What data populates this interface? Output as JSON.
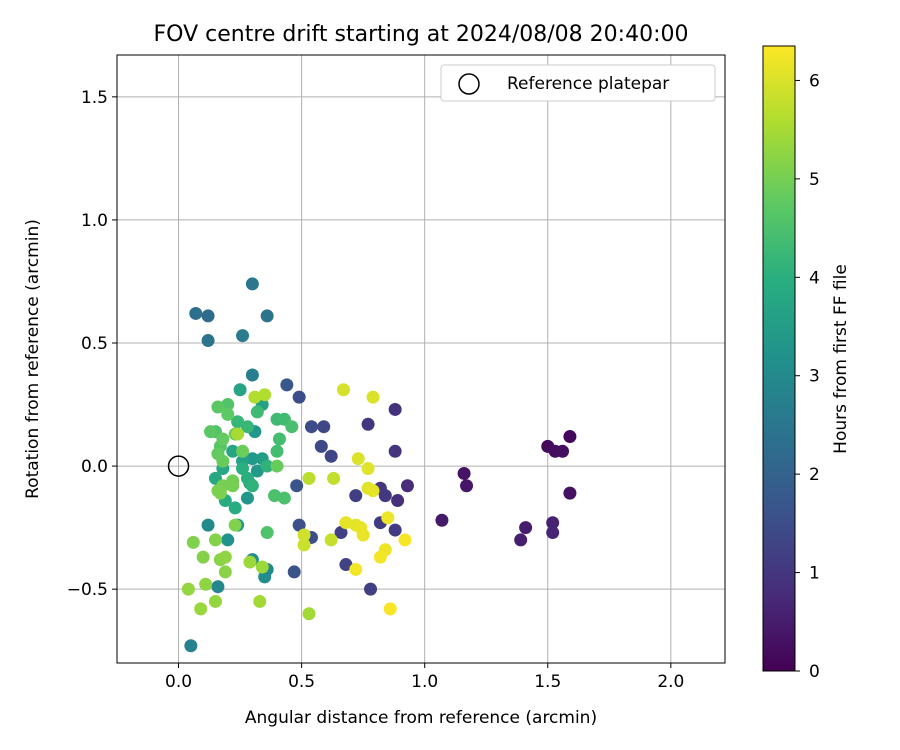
{
  "chart_data": {
    "type": "scatter",
    "title": "FOV centre drift starting at 2024/08/08 20:40:00",
    "xlabel": "Angular distance from reference (arcmin)",
    "ylabel": "Rotation from reference (arcmin)",
    "xlim": [
      -0.25,
      2.22
    ],
    "ylim": [
      -0.8,
      1.67
    ],
    "x_ticks": [
      {
        "value": 0.0,
        "label": "0.0"
      },
      {
        "value": 0.5,
        "label": "0.5"
      },
      {
        "value": 1.0,
        "label": "1.0"
      },
      {
        "value": 1.5,
        "label": "1.5"
      },
      {
        "value": 2.0,
        "label": "2.0"
      }
    ],
    "y_ticks": [
      {
        "value": -0.5,
        "label": "−0.5"
      },
      {
        "value": 0.0,
        "label": "0.0"
      },
      {
        "value": 0.5,
        "label": "0.5"
      },
      {
        "value": 1.0,
        "label": "1.0"
      },
      {
        "value": 1.5,
        "label": "1.5"
      }
    ],
    "grid": true,
    "legend": {
      "placement": "top-right",
      "entries": [
        {
          "label": "Reference platepar",
          "marker": "open-circle"
        }
      ]
    },
    "reference_point": {
      "x": 0.0,
      "y": 0.0
    },
    "colorbar": {
      "label": "Hours from first FF file",
      "colormap": "viridis",
      "range": [
        0,
        6.35
      ],
      "ticks": [
        {
          "value": 0,
          "label": "0"
        },
        {
          "value": 1,
          "label": "1"
        },
        {
          "value": 2,
          "label": "2"
        },
        {
          "value": 3,
          "label": "3"
        },
        {
          "value": 4,
          "label": "4"
        },
        {
          "value": 5,
          "label": "5"
        },
        {
          "value": 6,
          "label": "6"
        }
      ]
    },
    "points": [
      {
        "x": 1.59,
        "y": 0.12,
        "c": 0.1
      },
      {
        "x": 1.5,
        "y": 0.08,
        "c": 0.15
      },
      {
        "x": 1.53,
        "y": 0.06,
        "c": 0.2
      },
      {
        "x": 1.56,
        "y": 0.06,
        "c": 0.25
      },
      {
        "x": 1.59,
        "y": -0.11,
        "c": 0.3
      },
      {
        "x": 1.16,
        "y": -0.03,
        "c": 0.35
      },
      {
        "x": 1.17,
        "y": -0.08,
        "c": 0.4
      },
      {
        "x": 1.07,
        "y": -0.22,
        "c": 0.45
      },
      {
        "x": 1.41,
        "y": -0.25,
        "c": 0.5
      },
      {
        "x": 1.39,
        "y": -0.3,
        "c": 0.55
      },
      {
        "x": 1.52,
        "y": -0.23,
        "c": 0.6
      },
      {
        "x": 1.52,
        "y": -0.27,
        "c": 0.65
      },
      {
        "x": 0.93,
        "y": -0.08,
        "c": 0.8
      },
      {
        "x": 0.89,
        "y": -0.14,
        "c": 0.85
      },
      {
        "x": 0.88,
        "y": 0.23,
        "c": 0.9
      },
      {
        "x": 0.88,
        "y": 0.06,
        "c": 0.95
      },
      {
        "x": 0.77,
        "y": 0.17,
        "c": 1.0
      },
      {
        "x": 0.82,
        "y": -0.09,
        "c": 1.0
      },
      {
        "x": 0.84,
        "y": -0.12,
        "c": 1.05
      },
      {
        "x": 0.82,
        "y": -0.23,
        "c": 1.1
      },
      {
        "x": 0.88,
        "y": -0.26,
        "c": 1.1
      },
      {
        "x": 0.72,
        "y": -0.12,
        "c": 1.15
      },
      {
        "x": 0.78,
        "y": -0.5,
        "c": 1.2
      },
      {
        "x": 0.66,
        "y": -0.27,
        "c": 1.2
      },
      {
        "x": 0.68,
        "y": -0.4,
        "c": 1.25
      },
      {
        "x": 0.62,
        "y": 0.04,
        "c": 1.3
      },
      {
        "x": 0.59,
        "y": 0.16,
        "c": 1.35
      },
      {
        "x": 0.58,
        "y": 0.08,
        "c": 1.4
      },
      {
        "x": 0.54,
        "y": 0.16,
        "c": 1.45
      },
      {
        "x": 0.49,
        "y": 0.28,
        "c": 1.5
      },
      {
        "x": 0.54,
        "y": -0.29,
        "c": 1.5
      },
      {
        "x": 0.49,
        "y": -0.24,
        "c": 1.55
      },
      {
        "x": 0.47,
        "y": -0.43,
        "c": 1.6
      },
      {
        "x": 0.48,
        "y": -0.08,
        "c": 1.65
      },
      {
        "x": 0.44,
        "y": 0.33,
        "c": 1.7
      },
      {
        "x": 0.12,
        "y": 0.61,
        "c": 2.2
      },
      {
        "x": 0.07,
        "y": 0.62,
        "c": 2.3
      },
      {
        "x": 0.36,
        "y": 0.61,
        "c": 2.4
      },
      {
        "x": 0.12,
        "y": 0.51,
        "c": 2.4
      },
      {
        "x": 0.3,
        "y": 0.74,
        "c": 2.5
      },
      {
        "x": 0.26,
        "y": 0.53,
        "c": 2.6
      },
      {
        "x": 0.3,
        "y": 0.37,
        "c": 2.7
      },
      {
        "x": 0.05,
        "y": -0.73,
        "c": 2.8
      },
      {
        "x": 0.16,
        "y": -0.49,
        "c": 2.9
      },
      {
        "x": 0.12,
        "y": -0.24,
        "c": 3.0
      },
      {
        "x": 0.36,
        "y": -0.42,
        "c": 3.0
      },
      {
        "x": 0.35,
        "y": -0.45,
        "c": 3.1
      },
      {
        "x": 0.3,
        "y": -0.38,
        "c": 3.1
      },
      {
        "x": 0.24,
        "y": -0.24,
        "c": 3.2
      },
      {
        "x": 0.2,
        "y": -0.3,
        "c": 3.2
      },
      {
        "x": 0.28,
        "y": -0.13,
        "c": 3.3
      },
      {
        "x": 0.31,
        "y": 0.14,
        "c": 3.3
      },
      {
        "x": 0.3,
        "y": 0.03,
        "c": 3.4
      },
      {
        "x": 0.32,
        "y": -0.02,
        "c": 3.4
      },
      {
        "x": 0.34,
        "y": 0.03,
        "c": 3.5
      },
      {
        "x": 0.29,
        "y": -0.07,
        "c": 3.5
      },
      {
        "x": 0.26,
        "y": 0.02,
        "c": 3.6
      },
      {
        "x": 0.34,
        "y": 0.25,
        "c": 3.6
      },
      {
        "x": 0.25,
        "y": 0.31,
        "c": 3.7
      },
      {
        "x": 0.22,
        "y": 0.06,
        "c": 3.7
      },
      {
        "x": 0.18,
        "y": -0.01,
        "c": 3.8
      },
      {
        "x": 0.15,
        "y": -0.05,
        "c": 3.8
      },
      {
        "x": 0.19,
        "y": -0.14,
        "c": 3.9
      },
      {
        "x": 0.23,
        "y": -0.17,
        "c": 3.9
      },
      {
        "x": 0.26,
        "y": -0.01,
        "c": 4.0
      },
      {
        "x": 0.28,
        "y": -0.05,
        "c": 4.0
      },
      {
        "x": 0.3,
        "y": -0.08,
        "c": 4.1
      },
      {
        "x": 0.36,
        "y": 0.0,
        "c": 4.1
      },
      {
        "x": 0.24,
        "y": 0.18,
        "c": 4.2
      },
      {
        "x": 0.28,
        "y": 0.16,
        "c": 4.2
      },
      {
        "x": 0.32,
        "y": 0.22,
        "c": 4.3
      },
      {
        "x": 0.4,
        "y": 0.19,
        "c": 4.3
      },
      {
        "x": 0.43,
        "y": 0.19,
        "c": 4.35
      },
      {
        "x": 0.41,
        "y": 0.11,
        "c": 4.4
      },
      {
        "x": 0.4,
        "y": 0.06,
        "c": 4.4
      },
      {
        "x": 0.46,
        "y": 0.16,
        "c": 4.45
      },
      {
        "x": 0.43,
        "y": -0.13,
        "c": 4.5
      },
      {
        "x": 0.39,
        "y": -0.12,
        "c": 4.5
      },
      {
        "x": 0.36,
        "y": -0.27,
        "c": 4.55
      },
      {
        "x": 0.2,
        "y": 0.25,
        "c": 4.6
      },
      {
        "x": 0.15,
        "y": 0.14,
        "c": 4.6
      },
      {
        "x": 0.17,
        "y": 0.08,
        "c": 4.65
      },
      {
        "x": 0.13,
        "y": 0.14,
        "c": 4.7
      },
      {
        "x": 0.16,
        "y": 0.24,
        "c": 4.7
      },
      {
        "x": 0.2,
        "y": 0.21,
        "c": 4.75
      },
      {
        "x": 0.18,
        "y": 0.11,
        "c": 4.8
      },
      {
        "x": 0.16,
        "y": 0.05,
        "c": 4.8
      },
      {
        "x": 0.18,
        "y": 0.02,
        "c": 4.85
      },
      {
        "x": 0.4,
        "y": 0.0,
        "c": 4.85
      },
      {
        "x": 0.23,
        "y": 0.13,
        "c": 4.9
      },
      {
        "x": 0.26,
        "y": 0.06,
        "c": 4.9
      },
      {
        "x": 0.22,
        "y": -0.06,
        "c": 4.95
      },
      {
        "x": 0.22,
        "y": -0.08,
        "c": 5.0
      },
      {
        "x": 0.18,
        "y": -0.08,
        "c": 5.0
      },
      {
        "x": 0.16,
        "y": -0.1,
        "c": 5.05
      },
      {
        "x": 0.17,
        "y": -0.11,
        "c": 5.05
      },
      {
        "x": 0.23,
        "y": -0.24,
        "c": 5.1
      },
      {
        "x": 0.06,
        "y": -0.31,
        "c": 5.1
      },
      {
        "x": 0.1,
        "y": -0.37,
        "c": 5.15
      },
      {
        "x": 0.15,
        "y": -0.3,
        "c": 5.15
      },
      {
        "x": 0.17,
        "y": -0.38,
        "c": 5.2
      },
      {
        "x": 0.19,
        "y": -0.43,
        "c": 5.2
      },
      {
        "x": 0.19,
        "y": -0.37,
        "c": 5.25
      },
      {
        "x": 0.11,
        "y": -0.48,
        "c": 5.25
      },
      {
        "x": 0.04,
        "y": -0.5,
        "c": 5.3
      },
      {
        "x": 0.15,
        "y": -0.55,
        "c": 5.3
      },
      {
        "x": 0.09,
        "y": -0.58,
        "c": 5.35
      },
      {
        "x": 0.29,
        "y": -0.39,
        "c": 5.4
      },
      {
        "x": 0.34,
        "y": -0.41,
        "c": 5.4
      },
      {
        "x": 0.33,
        "y": -0.55,
        "c": 5.45
      },
      {
        "x": 0.53,
        "y": -0.6,
        "c": 5.45
      },
      {
        "x": 0.24,
        "y": 0.13,
        "c": 5.5
      },
      {
        "x": 0.31,
        "y": 0.28,
        "c": 5.6
      },
      {
        "x": 0.35,
        "y": 0.29,
        "c": 5.6
      },
      {
        "x": 0.53,
        "y": -0.05,
        "c": 5.7
      },
      {
        "x": 0.63,
        "y": -0.05,
        "c": 5.75
      },
      {
        "x": 0.62,
        "y": -0.3,
        "c": 5.8
      },
      {
        "x": 0.51,
        "y": -0.32,
        "c": 5.85
      },
      {
        "x": 0.51,
        "y": -0.28,
        "c": 5.9
      },
      {
        "x": 0.67,
        "y": 0.31,
        "c": 5.95
      },
      {
        "x": 0.79,
        "y": 0.28,
        "c": 6.0
      },
      {
        "x": 0.73,
        "y": 0.03,
        "c": 6.0
      },
      {
        "x": 0.77,
        "y": -0.01,
        "c": 6.05
      },
      {
        "x": 0.77,
        "y": -0.09,
        "c": 6.05
      },
      {
        "x": 0.79,
        "y": -0.1,
        "c": 6.1
      },
      {
        "x": 0.68,
        "y": -0.23,
        "c": 6.1
      },
      {
        "x": 0.72,
        "y": -0.24,
        "c": 6.1
      },
      {
        "x": 0.74,
        "y": -0.25,
        "c": 6.15
      },
      {
        "x": 0.75,
        "y": -0.28,
        "c": 6.15
      },
      {
        "x": 0.85,
        "y": -0.21,
        "c": 6.2
      },
      {
        "x": 0.84,
        "y": -0.34,
        "c": 6.2
      },
      {
        "x": 0.82,
        "y": -0.37,
        "c": 6.25
      },
      {
        "x": 0.72,
        "y": -0.42,
        "c": 6.25
      },
      {
        "x": 0.92,
        "y": -0.3,
        "c": 6.3
      },
      {
        "x": 0.86,
        "y": -0.58,
        "c": 6.3
      }
    ]
  }
}
